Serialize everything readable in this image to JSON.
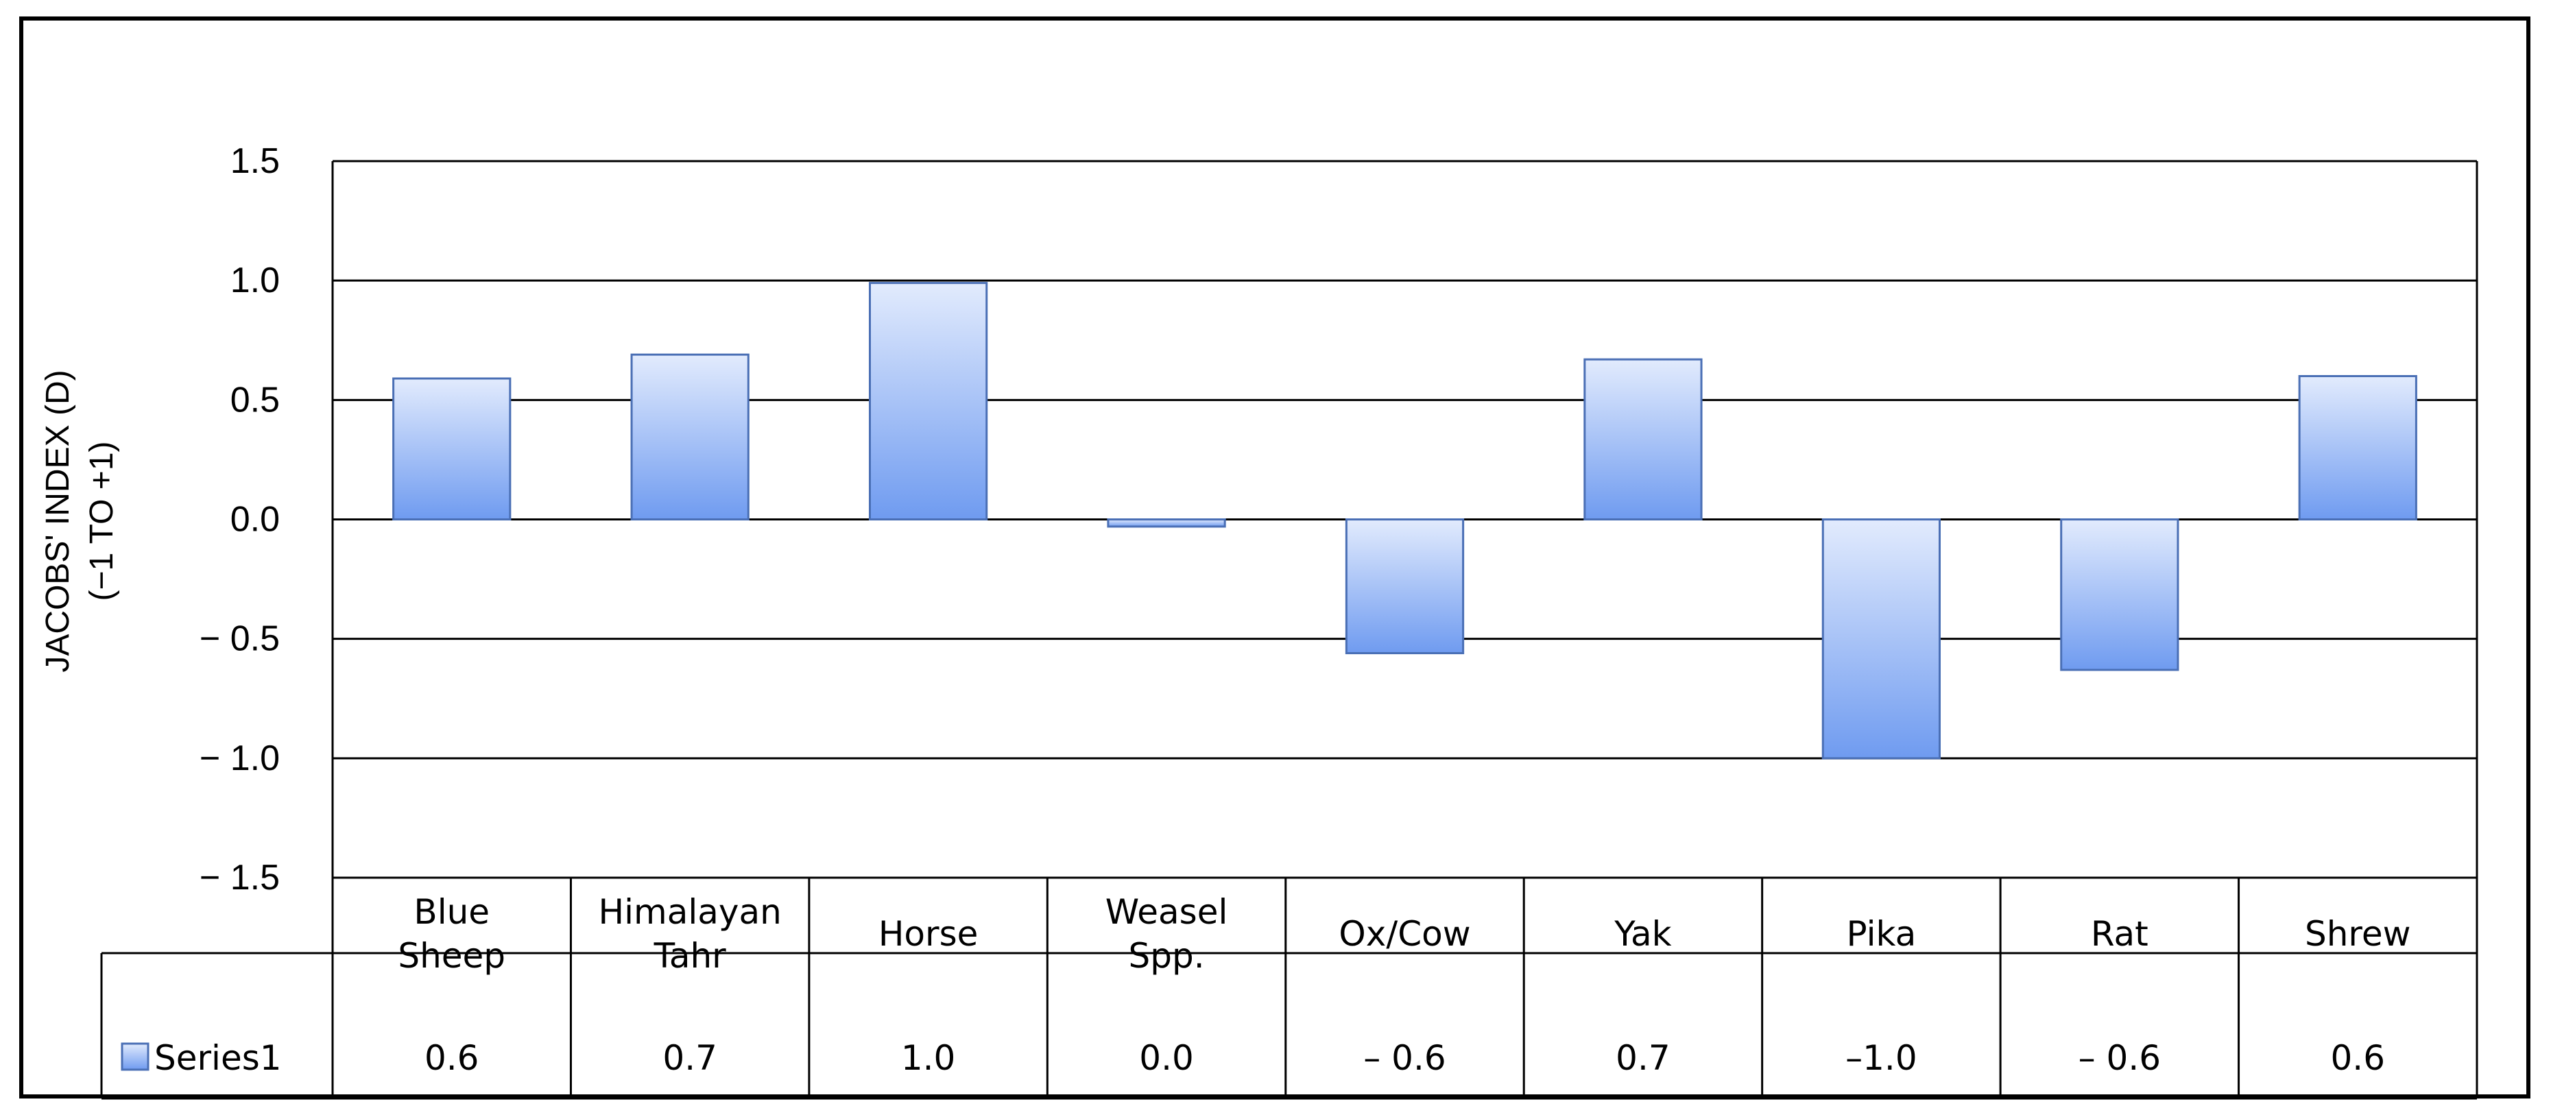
{
  "chart_data": {
    "type": "bar",
    "title": "",
    "ylabel_lines": [
      "JACOBS' INDEX (D)",
      "(−1 TO +1)"
    ],
    "xlabel": "",
    "ylim": [
      -1.5,
      1.5
    ],
    "yticks": [
      1.5,
      1.0,
      0.5,
      0.0,
      -0.5,
      -1.0,
      -1.5
    ],
    "ytick_labels": [
      "1.5",
      "1.0",
      "0.5",
      "0.0",
      "− 0.5",
      "− 1.0",
      "− 1.5"
    ],
    "grid": true,
    "categories": [
      [
        "Blue",
        "Sheep"
      ],
      [
        "Himalayan",
        "Tahr"
      ],
      [
        "Horse"
      ],
      [
        "Weasel",
        "Spp."
      ],
      [
        "Ox/Cow"
      ],
      [
        "Yak"
      ],
      [
        "Pika"
      ],
      [
        "Rat"
      ],
      [
        "Shrew"
      ]
    ],
    "series": [
      {
        "name": "Series1",
        "values": [
          0.59,
          0.69,
          0.99,
          -0.03,
          -0.56,
          0.67,
          -1.0,
          -0.63,
          0.6
        ],
        "table_labels": [
          "0.6",
          "0.7",
          "1.0",
          "0.0",
          "– 0.6",
          "0.7",
          "–1.0",
          "– 0.6",
          "0.6"
        ]
      }
    ],
    "legend_placement": "data-table",
    "colors": {
      "bar_top": "#dde8fc",
      "bar_bottom": "#6f9bf0",
      "bar_stroke": "#4a6fb5",
      "grid": "#000000"
    }
  }
}
